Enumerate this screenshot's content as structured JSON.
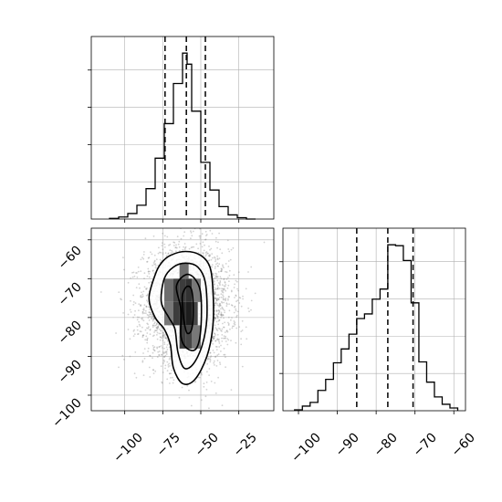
{
  "chart_data": {
    "type": "corner",
    "grid": true,
    "colors": {
      "line": "#000000",
      "grid": "#b0b0b0",
      "scatter": "#808080"
    },
    "panels": [
      {
        "id": "hist-x",
        "type": "histogram",
        "xlim": [
          -122,
          -2
        ],
        "bin_edges": [
          -110,
          -104,
          -98,
          -92,
          -86,
          -80,
          -74,
          -68,
          -62,
          -59,
          -56,
          -50,
          -44,
          -38,
          -32,
          -26,
          -20,
          -14
        ],
        "counts": [
          1,
          3,
          8,
          20,
          44,
          88,
          138,
          196,
          240,
          224,
          156,
          82,
          42,
          18,
          6,
          2,
          0
        ],
        "quantiles": [
          -73.5,
          -59.5,
          -47.0
        ],
        "xticks": [
          -100,
          -75,
          -50,
          -25
        ],
        "ytick_count": 4
      },
      {
        "id": "hist-y",
        "type": "histogram",
        "xlim": [
          -104,
          -57
        ],
        "bin_edges": [
          -101,
          -99,
          -97,
          -95,
          -93,
          -91,
          -89,
          -87,
          -85,
          -83,
          -81,
          -79,
          -77,
          -75,
          -73,
          -71,
          -69,
          -67,
          -65,
          -63,
          -61,
          -59
        ],
        "counts": [
          1,
          5,
          9,
          22,
          34,
          52,
          67,
          83,
          100,
          105,
          121,
          132,
          180,
          179,
          163,
          117,
          53,
          31,
          15,
          7,
          3
        ],
        "quantiles": [
          -85.0,
          -77.0,
          -70.5
        ],
        "xtick_labels": [
          "−100",
          "−90",
          "−80",
          "−70",
          "−60"
        ],
        "xticks": [
          -100,
          -90,
          -80,
          -70,
          -60
        ],
        "ytick_count": 4
      },
      {
        "id": "joint",
        "type": "scatter-contour",
        "xlim": [
          -122,
          -2
        ],
        "ylim": [
          -104,
          -57
        ],
        "xtick_labels": [
          "−100",
          "−75",
          "−50",
          "−25"
        ],
        "ytick_labels": [
          "−60",
          "−70",
          "−80",
          "−90",
          "−100"
        ],
        "xticks": [
          -100,
          -75,
          -50,
          -25
        ],
        "yticks": [
          -60,
          -70,
          -80,
          -90,
          -100
        ],
        "center": [
          -59,
          -77
        ],
        "spread": [
          14,
          7.5
        ],
        "n_points": 3500,
        "density_cells": [
          {
            "x": [
              -68,
              -64
            ],
            "y": [
              -76,
              -70
            ],
            "shade": 0.35
          },
          {
            "x": [
              -64,
              -60
            ],
            "y": [
              -76,
              -70
            ],
            "shade": 0.3
          },
          {
            "x": [
              -60,
              -56
            ],
            "y": [
              -76,
              -70
            ],
            "shade": 0.25
          },
          {
            "x": [
              -68,
              -64
            ],
            "y": [
              -82,
              -76
            ],
            "shade": 0.3
          },
          {
            "x": [
              -64,
              -60
            ],
            "y": [
              -82,
              -76
            ],
            "shade": 0.2
          },
          {
            "x": [
              -60,
              -56
            ],
            "y": [
              -82,
              -76
            ],
            "shade": 0.15
          },
          {
            "x": [
              -56,
              -52
            ],
            "y": [
              -82,
              -76
            ],
            "shade": 0.35
          },
          {
            "x": [
              -64,
              -60
            ],
            "y": [
              -88,
              -82
            ],
            "shade": 0.3
          },
          {
            "x": [
              -60,
              -56
            ],
            "y": [
              -88,
              -82
            ],
            "shade": 0.35
          },
          {
            "x": [
              -64,
              -58
            ],
            "y": [
              -70,
              -66
            ],
            "shade": 0.55
          },
          {
            "x": [
              -74,
              -68
            ],
            "y": [
              -76,
              -70
            ],
            "shade": 0.55
          },
          {
            "x": [
              -74,
              -68
            ],
            "y": [
              -82,
              -76
            ],
            "shade": 0.6
          },
          {
            "x": [
              -56,
              -50
            ],
            "y": [
              -76,
              -70
            ],
            "shade": 0.6
          },
          {
            "x": [
              -56,
              -50
            ],
            "y": [
              -88,
              -82
            ],
            "shade": 0.6
          }
        ],
        "contours": [
          [
            [
              -80,
              -69
            ],
            [
              -76,
              -66
            ],
            [
              -70,
              -64
            ],
            [
              -60,
              -63
            ],
            [
              -50,
              -64
            ],
            [
              -44,
              -67
            ],
            [
              -42,
              -73
            ],
            [
              -42,
              -82
            ],
            [
              -46,
              -90
            ],
            [
              -54,
              -96
            ],
            [
              -62,
              -97
            ],
            [
              -68,
              -93
            ],
            [
              -70,
              -87
            ],
            [
              -74,
              -83
            ],
            [
              -80,
              -80
            ],
            [
              -84,
              -75
            ]
          ],
          [
            [
              -74,
              -70
            ],
            [
              -68,
              -67
            ],
            [
              -60,
              -66
            ],
            [
              -52,
              -67
            ],
            [
              -47,
              -71
            ],
            [
              -46,
              -80
            ],
            [
              -49,
              -87
            ],
            [
              -55,
              -92
            ],
            [
              -61,
              -93
            ],
            [
              -65,
              -89
            ],
            [
              -67,
              -83
            ],
            [
              -71,
              -80
            ],
            [
              -76,
              -76
            ]
          ],
          [
            [
              -66,
              -72
            ],
            [
              -60,
              -69
            ],
            [
              -54,
              -70
            ],
            [
              -50,
              -74
            ],
            [
              -50,
              -83
            ],
            [
              -53,
              -88
            ],
            [
              -59,
              -88
            ],
            [
              -63,
              -85
            ],
            [
              -63,
              -78
            ]
          ],
          [
            [
              -62,
              -74
            ],
            [
              -59,
              -72
            ],
            [
              -56,
              -73
            ],
            [
              -55,
              -78
            ],
            [
              -56,
              -83
            ],
            [
              -59,
              -84
            ],
            [
              -61,
              -81
            ],
            [
              -62,
              -77
            ]
          ]
        ]
      }
    ]
  }
}
